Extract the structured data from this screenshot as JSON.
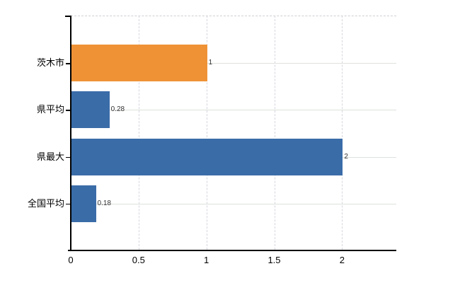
{
  "chart_data": {
    "type": "bar",
    "orientation": "horizontal",
    "title": "",
    "xlabel": "",
    "ylabel": "",
    "categories": [
      "茨木市",
      "県平均",
      "県最大",
      "全国平均"
    ],
    "values": [
      1,
      0.28,
      2,
      0.18
    ],
    "value_labels": [
      "1",
      "0.28",
      "2",
      "0.18"
    ],
    "bar_colors": [
      "#EF9236",
      "#3A6CA8",
      "#3A6CA8",
      "#3A6CA8"
    ],
    "xlim": [
      0,
      2.4
    ],
    "xticks": [
      0,
      0.5,
      1,
      1.5,
      2
    ],
    "xtick_labels": [
      "0",
      "0.5",
      "1",
      "1.5",
      "2"
    ],
    "grid": true,
    "legend": false,
    "colors": {
      "accent_orange": "#EF9236",
      "accent_blue": "#3A6CA8",
      "axis": "#000000",
      "grid_horizontal": "#dde2dc",
      "grid_vertical": "#d6d6e0",
      "value_label_text": "#333333"
    }
  }
}
